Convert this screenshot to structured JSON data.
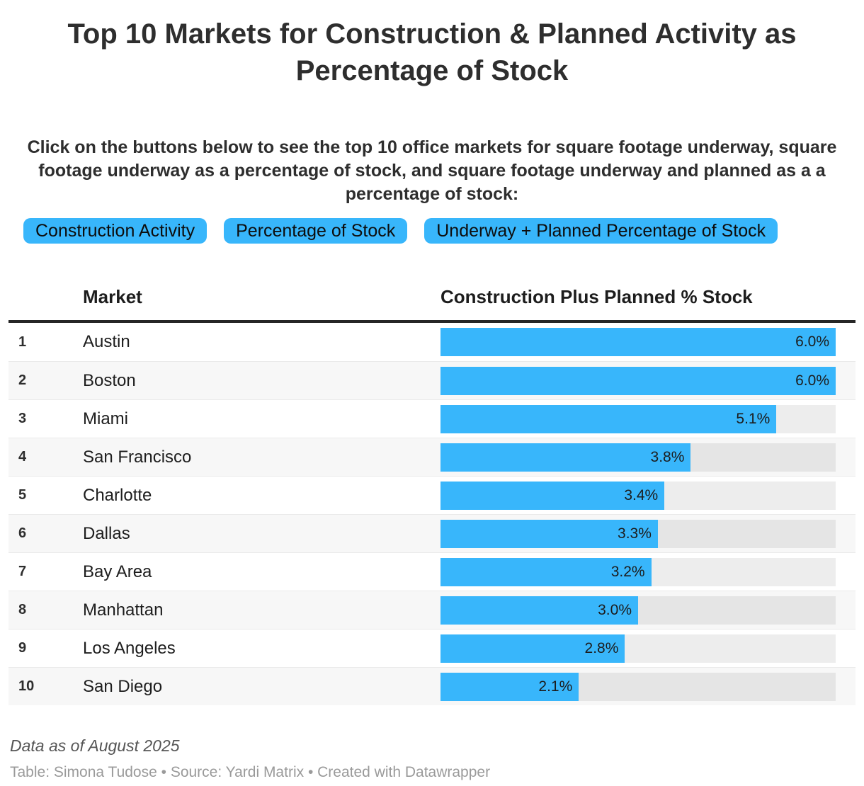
{
  "title": "Top 10 Markets for Construction & Planned Activity as Percentage of Stock",
  "intro": "Click on the buttons below to see the top 10 office markets for square footage underway, square footage underway as a percentage of stock, and square footage underway and planned as a a percentage of stock:",
  "buttons": [
    {
      "label": "Construction Activity"
    },
    {
      "label": "Percentage of Stock"
    },
    {
      "label": "Underway + Planned Percentage of Stock"
    }
  ],
  "table": {
    "columns": [
      "Market",
      "Construction Plus Planned % Stock"
    ],
    "max_value": 6.0,
    "rows": [
      {
        "rank": "1",
        "market": "Austin",
        "value": 6.0,
        "label": "6.0%"
      },
      {
        "rank": "2",
        "market": "Boston",
        "value": 6.0,
        "label": "6.0%"
      },
      {
        "rank": "3",
        "market": "Miami",
        "value": 5.1,
        "label": "5.1%"
      },
      {
        "rank": "4",
        "market": "San Francisco",
        "value": 3.8,
        "label": "3.8%"
      },
      {
        "rank": "5",
        "market": "Charlotte",
        "value": 3.4,
        "label": "3.4%"
      },
      {
        "rank": "6",
        "market": "Dallas",
        "value": 3.3,
        "label": "3.3%"
      },
      {
        "rank": "7",
        "market": "Bay Area",
        "value": 3.2,
        "label": "3.2%"
      },
      {
        "rank": "8",
        "market": "Manhattan",
        "value": 3.0,
        "label": "3.0%"
      },
      {
        "rank": "9",
        "market": "Los Angeles",
        "value": 2.8,
        "label": "2.8%"
      },
      {
        "rank": "10",
        "market": "San Diego",
        "value": 2.1,
        "label": "2.1%"
      }
    ]
  },
  "chart_data": {
    "type": "bar",
    "title": "Top 10 Markets for Construction & Planned Activity as Percentage of Stock",
    "column_headers": [
      "Market",
      "Construction Plus Planned % Stock"
    ],
    "categories": [
      "Austin",
      "Boston",
      "Miami",
      "San Francisco",
      "Charlotte",
      "Dallas",
      "Bay Area",
      "Manhattan",
      "Los Angeles",
      "San Diego"
    ],
    "values": [
      6.0,
      6.0,
      5.1,
      3.8,
      3.4,
      3.3,
      3.2,
      3.0,
      2.8,
      2.1
    ],
    "value_labels": [
      "6.0%",
      "6.0%",
      "5.1%",
      "3.8%",
      "3.4%",
      "3.3%",
      "3.2%",
      "3.0%",
      "2.8%",
      "2.1%"
    ],
    "ranks": [
      1,
      2,
      3,
      4,
      5,
      6,
      7,
      8,
      9,
      10
    ],
    "xlim": [
      0,
      6.0
    ],
    "orientation": "horizontal",
    "grid": false,
    "legend": "none"
  },
  "colors": {
    "accent_blue": "#38b6fb",
    "bar_track": "rgba(0,0,0,0.072)",
    "row_stripe": "#f7f7f7",
    "header_rule": "#262626",
    "text_dark": "#2e2e2e",
    "footer_note": "#555555",
    "footer_credits": "#9a9a9a"
  },
  "footer": {
    "note": "Data as of August 2025",
    "credits": "Table: Simona Tudose • Source: Yardi Matrix • Created with Datawrapper"
  }
}
